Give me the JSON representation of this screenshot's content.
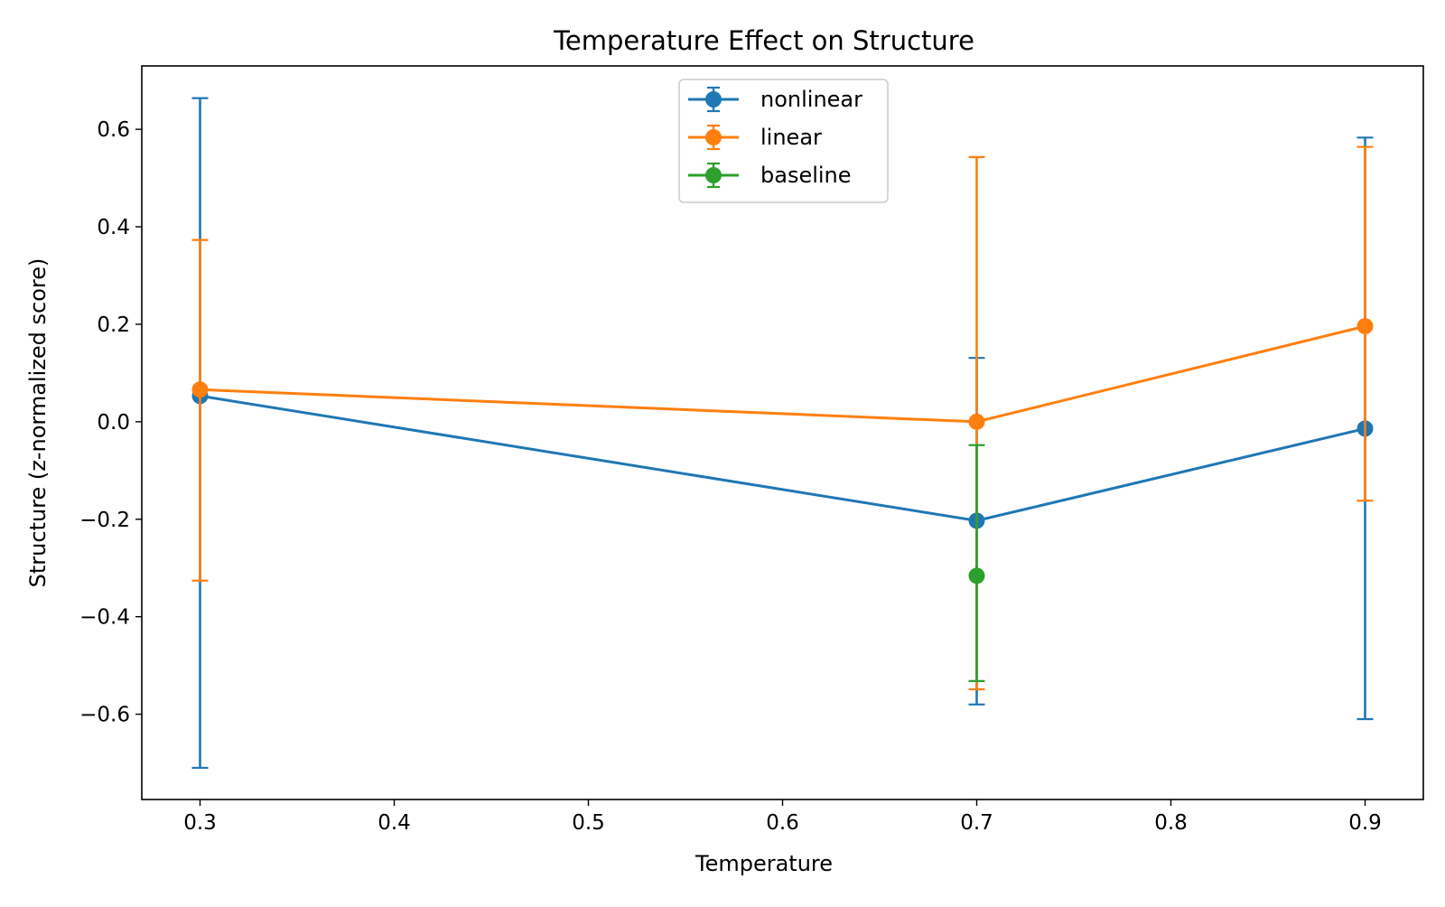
{
  "chart_data": {
    "type": "line",
    "title": "Temperature Effect on Structure",
    "xlabel": "Temperature",
    "ylabel": "Structure (z-normalized score)",
    "xlim": [
      0.27,
      0.93
    ],
    "ylim": [
      -0.775,
      0.73
    ],
    "xticks": [
      0.3,
      0.4,
      0.5,
      0.6,
      0.7,
      0.8,
      0.9
    ],
    "xtick_labels": [
      "0.3",
      "0.4",
      "0.5",
      "0.6",
      "0.7",
      "0.8",
      "0.9"
    ],
    "yticks": [
      -0.6,
      -0.4,
      -0.2,
      0.0,
      0.2,
      0.4,
      0.6
    ],
    "ytick_labels": [
      "−0.6",
      "−0.4",
      "−0.2",
      "0.0",
      "0.2",
      "0.4",
      "0.6"
    ],
    "grid": false,
    "legend_position": "top-center",
    "series": [
      {
        "name": "nonlinear",
        "color": "#1f77b4",
        "x": [
          0.3,
          0.7,
          0.9
        ],
        "y": [
          0.053,
          -0.203,
          -0.014
        ],
        "yerr_low": [
          -0.71,
          -0.58,
          -0.61
        ],
        "yerr_high": [
          0.664,
          0.131,
          0.583
        ]
      },
      {
        "name": "linear",
        "color": "#ff7f0e",
        "x": [
          0.3,
          0.7,
          0.9
        ],
        "y": [
          0.066,
          0.0,
          0.196
        ],
        "yerr_low": [
          -0.326,
          -0.549,
          -0.162
        ],
        "yerr_high": [
          0.373,
          0.543,
          0.564
        ]
      },
      {
        "name": "baseline",
        "color": "#2ca02c",
        "x": [
          0.7
        ],
        "y": [
          -0.316
        ],
        "yerr_low": [
          -0.532
        ],
        "yerr_high": [
          -0.048
        ]
      }
    ]
  }
}
